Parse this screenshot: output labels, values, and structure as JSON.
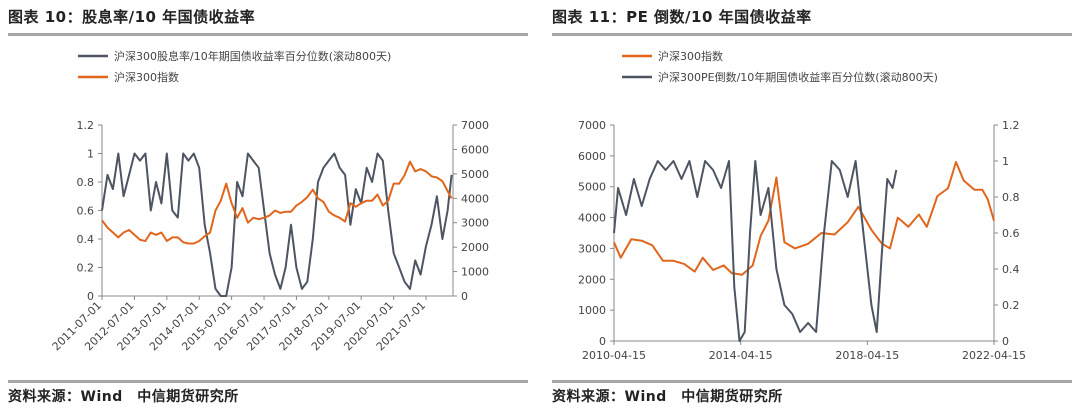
{
  "figures": [
    {
      "title": "图表 10：股息率/10 年国债收益率",
      "source": "资料来源：Wind　中信期货研究所"
    },
    {
      "title": "图表 11：PE 倒数/10 年国债收益率",
      "source": "资料来源：Wind　中信期货研究所"
    }
  ],
  "colors": {
    "gray_series": "#4d5563",
    "orange_series": "#e0661c",
    "axis": "#888888"
  },
  "chart_data": [
    {
      "type": "line",
      "title": "",
      "legend": [
        {
          "name": "沪深300股息率/10年期国债收益率百分位数(滚动800天)",
          "color": "#4d5563"
        },
        {
          "name": "沪深300指数",
          "color": "#e0661c"
        }
      ],
      "legend_position": "top-left",
      "grid": false,
      "x_ticks": [
        "2011-07-01",
        "2012-07-01",
        "2013-07-01",
        "2014-07-01",
        "2015-07-01",
        "2016-07-01",
        "2017-07-01",
        "2018-07-01",
        "2019-07-01",
        "2020-07-01",
        "2021-07-01"
      ],
      "x_range": [
        "2011-07-01",
        "2022-05-01"
      ],
      "y_left": {
        "min": 0,
        "max": 1.2,
        "ticks": [
          0,
          0.2,
          0.4,
          0.6,
          0.8,
          1,
          1.2
        ],
        "tick_labels": [
          "0",
          "0.2",
          "0.4",
          "0.6",
          "0.8",
          "1",
          "1.2"
        ]
      },
      "y_right": {
        "min": 0,
        "max": 7000,
        "ticks": [
          0,
          1000,
          2000,
          3000,
          4000,
          5000,
          6000,
          7000
        ],
        "tick_labels": [
          "0",
          "1000",
          "2000",
          "3000",
          "4000",
          "5000",
          "6000",
          "7000"
        ]
      },
      "series": [
        {
          "name": "沪深300股息率/10年期国债收益率百分位数(滚动800天)",
          "axis": "left",
          "color": "#4d5563",
          "points": [
            [
              "2011-07-01",
              0.6
            ],
            [
              "2011-09-01",
              0.85
            ],
            [
              "2011-11-01",
              0.75
            ],
            [
              "2012-01-01",
              1.0
            ],
            [
              "2012-03-01",
              0.7
            ],
            [
              "2012-05-01",
              0.85
            ],
            [
              "2012-07-01",
              1.0
            ],
            [
              "2012-09-01",
              0.95
            ],
            [
              "2012-11-01",
              1.0
            ],
            [
              "2013-01-01",
              0.6
            ],
            [
              "2013-03-01",
              0.8
            ],
            [
              "2013-05-01",
              0.65
            ],
            [
              "2013-07-01",
              1.0
            ],
            [
              "2013-09-01",
              0.6
            ],
            [
              "2013-11-01",
              0.55
            ],
            [
              "2014-01-01",
              1.0
            ],
            [
              "2014-03-01",
              0.95
            ],
            [
              "2014-05-01",
              1.0
            ],
            [
              "2014-07-01",
              0.9
            ],
            [
              "2014-09-01",
              0.5
            ],
            [
              "2014-11-01",
              0.3
            ],
            [
              "2015-01-01",
              0.05
            ],
            [
              "2015-03-01",
              0.0
            ],
            [
              "2015-05-01",
              0.0
            ],
            [
              "2015-07-01",
              0.2
            ],
            [
              "2015-09-01",
              0.8
            ],
            [
              "2015-11-01",
              0.7
            ],
            [
              "2016-01-01",
              1.0
            ],
            [
              "2016-03-01",
              0.95
            ],
            [
              "2016-05-01",
              0.9
            ],
            [
              "2016-07-01",
              0.6
            ],
            [
              "2016-09-01",
              0.3
            ],
            [
              "2016-11-01",
              0.15
            ],
            [
              "2017-01-01",
              0.05
            ],
            [
              "2017-03-01",
              0.2
            ],
            [
              "2017-05-01",
              0.5
            ],
            [
              "2017-07-01",
              0.2
            ],
            [
              "2017-09-01",
              0.05
            ],
            [
              "2017-11-01",
              0.1
            ],
            [
              "2018-01-01",
              0.4
            ],
            [
              "2018-03-01",
              0.8
            ],
            [
              "2018-05-01",
              0.9
            ],
            [
              "2018-07-01",
              0.95
            ],
            [
              "2018-09-01",
              1.0
            ],
            [
              "2018-11-01",
              0.9
            ],
            [
              "2019-01-01",
              0.85
            ],
            [
              "2019-03-01",
              0.5
            ],
            [
              "2019-05-01",
              0.75
            ],
            [
              "2019-07-01",
              0.65
            ],
            [
              "2019-09-01",
              0.9
            ],
            [
              "2019-11-01",
              0.8
            ],
            [
              "2020-01-01",
              1.0
            ],
            [
              "2020-03-01",
              0.95
            ],
            [
              "2020-05-01",
              0.6
            ],
            [
              "2020-07-01",
              0.3
            ],
            [
              "2020-09-01",
              0.2
            ],
            [
              "2020-11-01",
              0.1
            ],
            [
              "2021-01-01",
              0.05
            ],
            [
              "2021-03-01",
              0.25
            ],
            [
              "2021-05-01",
              0.15
            ],
            [
              "2021-07-01",
              0.35
            ],
            [
              "2021-09-01",
              0.5
            ],
            [
              "2021-11-01",
              0.7
            ],
            [
              "2022-01-01",
              0.4
            ],
            [
              "2022-03-01",
              0.6
            ],
            [
              "2022-04-15",
              0.85
            ]
          ]
        },
        {
          "name": "沪深300指数",
          "axis": "right",
          "color": "#e0661c",
          "points": [
            [
              "2011-07-01",
              3100
            ],
            [
              "2011-09-01",
              2800
            ],
            [
              "2011-11-01",
              2600
            ],
            [
              "2012-01-01",
              2400
            ],
            [
              "2012-03-01",
              2600
            ],
            [
              "2012-05-01",
              2700
            ],
            [
              "2012-07-01",
              2500
            ],
            [
              "2012-09-01",
              2300
            ],
            [
              "2012-11-01",
              2250
            ],
            [
              "2013-01-01",
              2600
            ],
            [
              "2013-03-01",
              2500
            ],
            [
              "2013-05-01",
              2600
            ],
            [
              "2013-07-01",
              2250
            ],
            [
              "2013-09-01",
              2400
            ],
            [
              "2013-11-01",
              2400
            ],
            [
              "2014-01-01",
              2200
            ],
            [
              "2014-03-01",
              2150
            ],
            [
              "2014-05-01",
              2150
            ],
            [
              "2014-07-01",
              2250
            ],
            [
              "2014-09-01",
              2450
            ],
            [
              "2014-11-01",
              2600
            ],
            [
              "2015-01-01",
              3500
            ],
            [
              "2015-03-01",
              3900
            ],
            [
              "2015-05-01",
              4600
            ],
            [
              "2015-07-01",
              3800
            ],
            [
              "2015-09-01",
              3200
            ],
            [
              "2015-11-01",
              3600
            ],
            [
              "2016-01-01",
              3000
            ],
            [
              "2016-03-01",
              3200
            ],
            [
              "2016-05-01",
              3150
            ],
            [
              "2016-07-01",
              3200
            ],
            [
              "2016-09-01",
              3300
            ],
            [
              "2016-11-01",
              3500
            ],
            [
              "2017-01-01",
              3400
            ],
            [
              "2017-03-01",
              3450
            ],
            [
              "2017-05-01",
              3450
            ],
            [
              "2017-07-01",
              3700
            ],
            [
              "2017-09-01",
              3850
            ],
            [
              "2017-11-01",
              4050
            ],
            [
              "2018-01-01",
              4350
            ],
            [
              "2018-03-01",
              4000
            ],
            [
              "2018-05-01",
              3850
            ],
            [
              "2018-07-01",
              3450
            ],
            [
              "2018-09-01",
              3300
            ],
            [
              "2018-11-01",
              3200
            ],
            [
              "2019-01-01",
              3050
            ],
            [
              "2019-03-01",
              3800
            ],
            [
              "2019-05-01",
              3650
            ],
            [
              "2019-07-01",
              3800
            ],
            [
              "2019-09-01",
              3900
            ],
            [
              "2019-11-01",
              3900
            ],
            [
              "2020-01-01",
              4150
            ],
            [
              "2020-03-01",
              3700
            ],
            [
              "2020-05-01",
              3900
            ],
            [
              "2020-07-01",
              4600
            ],
            [
              "2020-09-01",
              4600
            ],
            [
              "2020-11-01",
              4950
            ],
            [
              "2021-01-01",
              5500
            ],
            [
              "2021-03-01",
              5100
            ],
            [
              "2021-05-01",
              5200
            ],
            [
              "2021-07-01",
              5100
            ],
            [
              "2021-09-01",
              4900
            ],
            [
              "2021-11-01",
              4850
            ],
            [
              "2022-01-01",
              4700
            ],
            [
              "2022-03-01",
              4300
            ],
            [
              "2022-04-15",
              4000
            ]
          ]
        }
      ]
    },
    {
      "type": "line",
      "title": "",
      "legend": [
        {
          "name": "沪深300指数",
          "color": "#e0661c"
        },
        {
          "name": "沪深300PE倒数/10年期国债收益率百分位数(滚动800天)",
          "color": "#4d5563"
        }
      ],
      "legend_position": "top-left",
      "grid": false,
      "x_ticks": [
        "2010-04-15",
        "2014-04-15",
        "2018-04-15",
        "2022-04-15"
      ],
      "x_range": [
        "2010-04-15",
        "2022-04-15"
      ],
      "y_left": {
        "min": 0,
        "max": 7000,
        "ticks": [
          0,
          1000,
          2000,
          3000,
          4000,
          5000,
          6000,
          7000
        ],
        "tick_labels": [
          "0",
          "1000",
          "2000",
          "3000",
          "4000",
          "5000",
          "6000",
          "7000"
        ]
      },
      "y_right": {
        "min": 0,
        "max": 1.2,
        "ticks": [
          0,
          0.2,
          0.4,
          0.6,
          0.8,
          1,
          1.2
        ],
        "tick_labels": [
          "0",
          "0.2",
          "0.4",
          "0.6",
          "0.8",
          "1",
          "1.2"
        ]
      },
      "series": [
        {
          "name": "沪深300指数",
          "axis": "left",
          "color": "#e0661c",
          "points": [
            [
              "2010-04-15",
              3200
            ],
            [
              "2010-07-01",
              2700
            ],
            [
              "2010-11-01",
              3300
            ],
            [
              "2011-03-01",
              3250
            ],
            [
              "2011-07-01",
              3100
            ],
            [
              "2011-11-01",
              2600
            ],
            [
              "2012-03-01",
              2600
            ],
            [
              "2012-07-01",
              2500
            ],
            [
              "2012-11-01",
              2250
            ],
            [
              "2013-02-01",
              2700
            ],
            [
              "2013-06-01",
              2300
            ],
            [
              "2013-10-01",
              2450
            ],
            [
              "2014-01-01",
              2200
            ],
            [
              "2014-05-01",
              2150
            ],
            [
              "2014-09-01",
              2450
            ],
            [
              "2014-12-01",
              3400
            ],
            [
              "2015-03-01",
              3900
            ],
            [
              "2015-06-01",
              5300
            ],
            [
              "2015-09-01",
              3200
            ],
            [
              "2016-01-01",
              3000
            ],
            [
              "2016-06-01",
              3150
            ],
            [
              "2016-11-01",
              3500
            ],
            [
              "2017-04-01",
              3450
            ],
            [
              "2017-09-01",
              3850
            ],
            [
              "2018-01-01",
              4350
            ],
            [
              "2018-06-01",
              3600
            ],
            [
              "2018-10-01",
              3150
            ],
            [
              "2019-01-01",
              3000
            ],
            [
              "2019-04-01",
              4000
            ],
            [
              "2019-08-01",
              3700
            ],
            [
              "2019-12-01",
              4100
            ],
            [
              "2020-03-01",
              3700
            ],
            [
              "2020-07-01",
              4700
            ],
            [
              "2020-11-01",
              4950
            ],
            [
              "2021-02-01",
              5800
            ],
            [
              "2021-05-01",
              5200
            ],
            [
              "2021-09-01",
              4900
            ],
            [
              "2021-12-01",
              4900
            ],
            [
              "2022-02-01",
              4600
            ],
            [
              "2022-04-15",
              3900
            ]
          ]
        },
        {
          "name": "沪深300PE倒数/10年期国债收益率百分位数(滚动800天)",
          "axis": "right",
          "color": "#4d5563",
          "points": [
            [
              "2010-04-15",
              0.6
            ],
            [
              "2010-06-01",
              0.85
            ],
            [
              "2010-09-01",
              0.7
            ],
            [
              "2010-12-01",
              0.9
            ],
            [
              "2011-03-01",
              0.75
            ],
            [
              "2011-06-01",
              0.9
            ],
            [
              "2011-09-01",
              1.0
            ],
            [
              "2011-12-01",
              0.95
            ],
            [
              "2012-03-01",
              1.0
            ],
            [
              "2012-06-01",
              0.9
            ],
            [
              "2012-09-01",
              1.0
            ],
            [
              "2012-12-01",
              0.8
            ],
            [
              "2013-03-01",
              1.0
            ],
            [
              "2013-06-01",
              0.95
            ],
            [
              "2013-09-01",
              0.85
            ],
            [
              "2013-12-01",
              1.0
            ],
            [
              "2014-02-01",
              0.3
            ],
            [
              "2014-04-01",
              0.0
            ],
            [
              "2014-06-01",
              0.05
            ],
            [
              "2014-08-01",
              0.6
            ],
            [
              "2014-10-01",
              1.0
            ],
            [
              "2014-12-01",
              0.7
            ],
            [
              "2015-03-01",
              0.85
            ],
            [
              "2015-06-01",
              0.4
            ],
            [
              "2015-09-01",
              0.2
            ],
            [
              "2015-12-01",
              0.15
            ],
            [
              "2016-03-01",
              0.05
            ],
            [
              "2016-06-01",
              0.1
            ],
            [
              "2016-09-01",
              0.05
            ],
            [
              "2016-12-01",
              0.6
            ],
            [
              "2017-03-01",
              1.0
            ],
            [
              "2017-06-01",
              0.95
            ],
            [
              "2017-09-01",
              0.8
            ],
            [
              "2017-12-01",
              1.0
            ],
            [
              "2018-03-01",
              0.6
            ],
            [
              "2018-06-01",
              0.2
            ],
            [
              "2018-08-01",
              0.05
            ],
            [
              "2018-10-01",
              0.5
            ],
            [
              "2018-12-01",
              0.9
            ],
            [
              "2019-02-01",
              0.85
            ],
            [
              "2019-03-15",
              0.95
            ]
          ]
        }
      ]
    }
  ]
}
